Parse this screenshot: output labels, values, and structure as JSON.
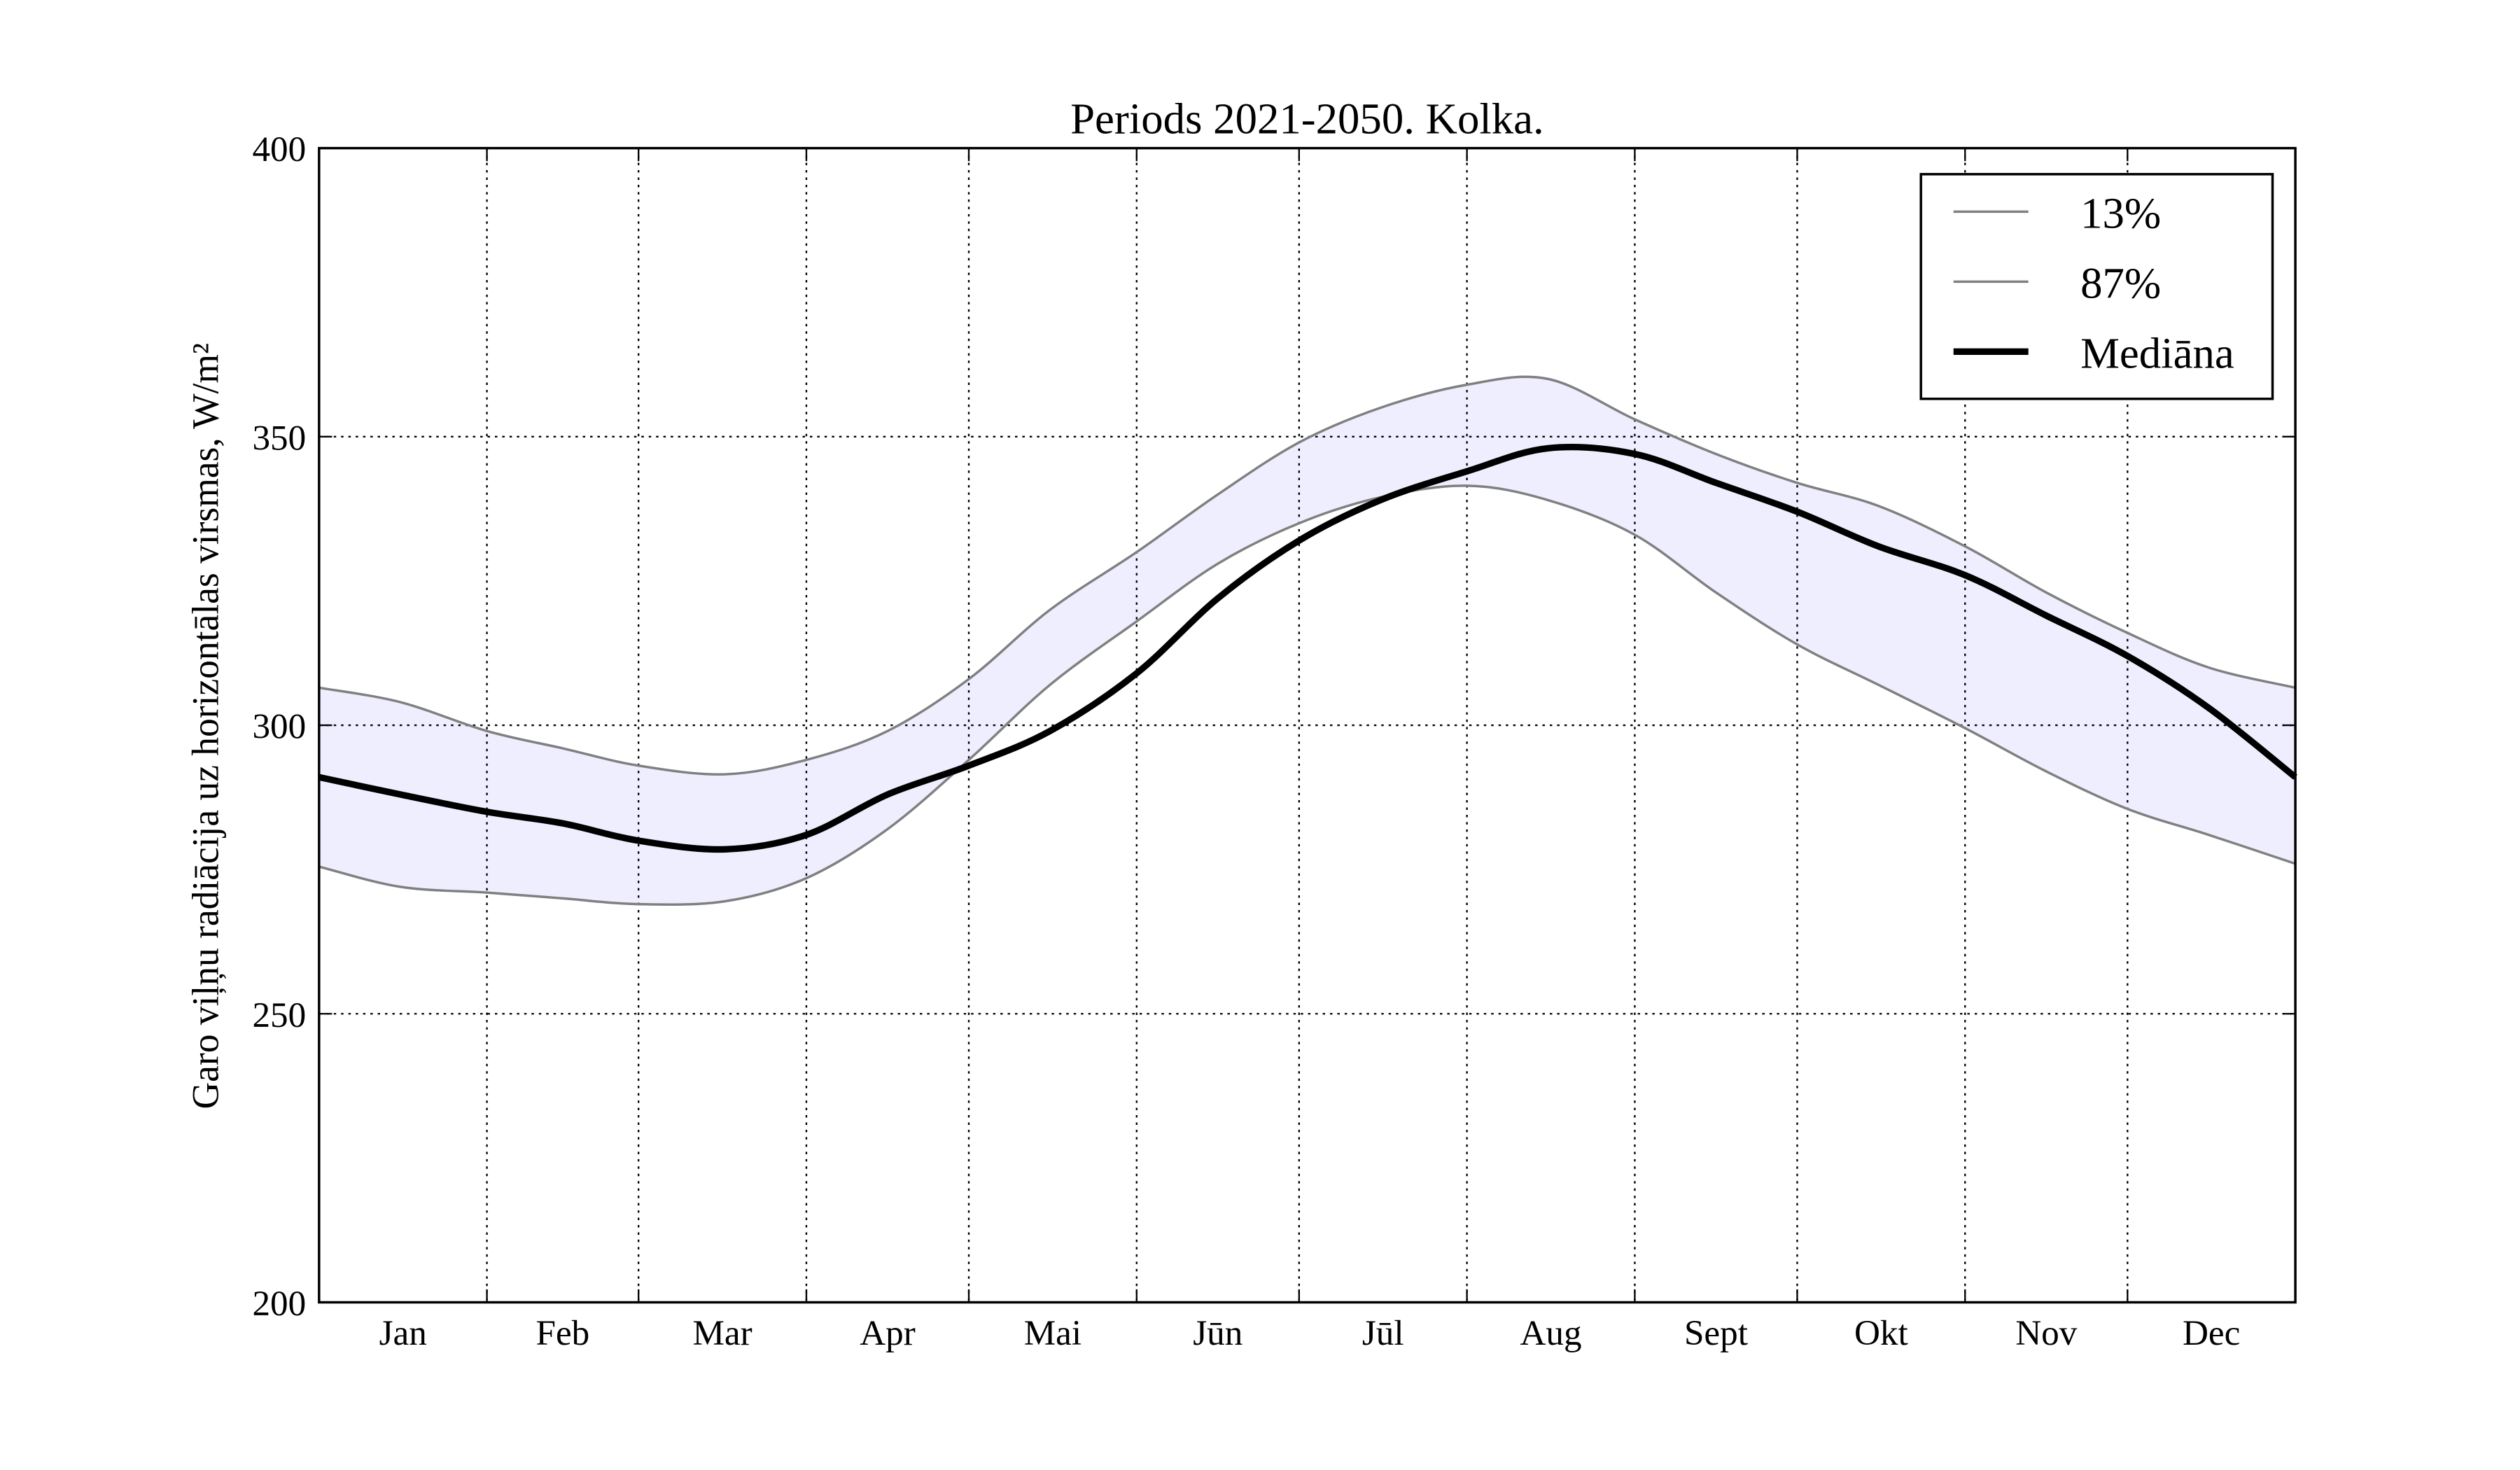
{
  "chart_data": {
    "type": "line",
    "title": "Periods 2021-2050. Kolka.",
    "ylabel": "Garo viļņu radiācija uz horizontālas virsmas, W/m²",
    "x": [
      0,
      15,
      31,
      45,
      59,
      75,
      90,
      105,
      120,
      135,
      151,
      166,
      181,
      196,
      212,
      227,
      243,
      258,
      273,
      288,
      304,
      319,
      334,
      349,
      365
    ],
    "series": [
      {
        "name": "13%",
        "color": "#808080",
        "width": 1.5,
        "values": [
          275.5,
          272,
          271,
          270,
          269,
          269.5,
          273.5,
          282,
          294,
          307,
          318,
          328,
          335,
          339.5,
          341.5,
          339,
          333,
          323,
          314,
          307,
          299.5,
          292,
          285.5,
          281,
          276
        ]
      },
      {
        "name": "87%",
        "color": "#808080",
        "width": 1.5,
        "values": [
          306.5,
          304,
          299,
          296,
          293,
          291.5,
          294,
          299,
          308,
          320,
          330,
          340,
          349,
          355,
          359,
          360,
          353,
          347,
          342,
          338,
          331,
          323,
          316,
          310,
          306.5
        ]
      },
      {
        "name": "Mediāna",
        "color": "#000000",
        "width": 4,
        "values": [
          291,
          288,
          285,
          283,
          280,
          278.5,
          281,
          288,
          293,
          299,
          309,
          322,
          332,
          339,
          344,
          348,
          347,
          342,
          337,
          331,
          326,
          319,
          312,
          303,
          291
        ]
      }
    ],
    "band_color": "#eeeeff",
    "xlim": [
      0,
      365
    ],
    "xticks": [
      {
        "value": 15.5,
        "label": "Jan"
      },
      {
        "value": 45,
        "label": "Feb"
      },
      {
        "value": 74.5,
        "label": "Mar"
      },
      {
        "value": 105,
        "label": "Apr"
      },
      {
        "value": 135.5,
        "label": "Mai"
      },
      {
        "value": 166,
        "label": "Jūn"
      },
      {
        "value": 196.5,
        "label": "Jūl"
      },
      {
        "value": 227.5,
        "label": "Aug"
      },
      {
        "value": 258,
        "label": "Sept"
      },
      {
        "value": 288.5,
        "label": "Okt"
      },
      {
        "value": 319,
        "label": "Nov"
      },
      {
        "value": 349.5,
        "label": "Dec"
      }
    ],
    "xgrid": [
      31,
      59,
      90,
      120,
      151,
      181,
      212,
      243,
      273,
      304,
      334
    ],
    "ylim": [
      200,
      400
    ],
    "yticks": [
      200,
      250,
      300,
      350,
      400
    ],
    "grid": true,
    "legend": "upper right"
  }
}
